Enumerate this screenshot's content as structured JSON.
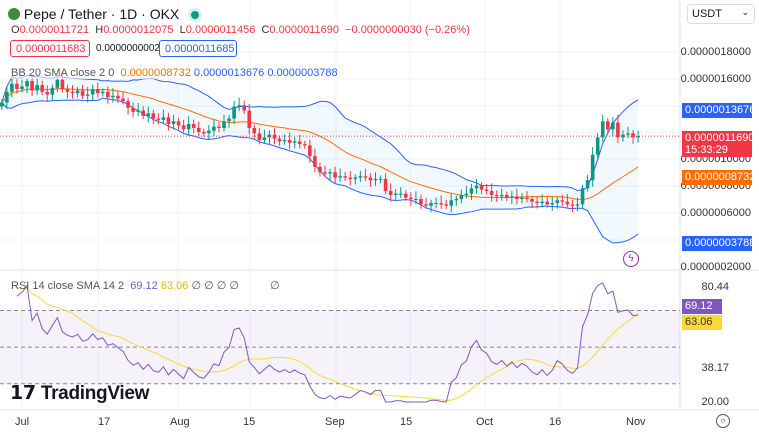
{
  "header": {
    "symbol": "Pepe / Tether · 1D · OKX",
    "status_color": "#089981",
    "ohlc": {
      "o_label": "O",
      "o": "0.0000011721",
      "h_label": "H",
      "h": "0.0000012075",
      "l_label": "L",
      "l": "0.0000011456",
      "c_label": "C",
      "c": "0.0000011690",
      "change": "−0.0000000030 (−0.26%)"
    },
    "sell": "0.0000011683",
    "spread": "0.0000000002",
    "buy": "0.0000011685"
  },
  "currency": "USDT",
  "bb": {
    "label": "BB 20 SMA close 2 0",
    "basis": "0.0000008732",
    "upper": "0.0000013676",
    "lower": "0.0000003788"
  },
  "price_axis": [
    "0.0000018000",
    "0.0000016000",
    "0.0000010000",
    "0.0000008000",
    "0.0000006000",
    "0.0000002000"
  ],
  "price_tags": {
    "upper": "0.0000013676",
    "last": "0.0000011690",
    "countdown": "15:33:29",
    "basis": "0.0000008732",
    "lower": "0.0000003788"
  },
  "rsi": {
    "label": "RSI 14 close SMA 14 2",
    "rsi": "69.12",
    "sma": "63.06",
    "extras": "∅ ∅ ∅ ∅",
    "extra2": "∅",
    "axis": [
      "80.44",
      "38.17",
      "20.00"
    ]
  },
  "time_axis": [
    "Jul",
    "17",
    "Aug",
    "15",
    "Sep",
    "15",
    "Oct",
    "16",
    "Nov"
  ],
  "logo": "TradingView",
  "colors": {
    "up": "#089981",
    "down": "#f23645",
    "bb_band": "#2962ff",
    "basis": "#ff6d00",
    "rsi": "#7e57c2",
    "rsi_sma": "#fdd835"
  },
  "closes_e7": [
    14.2,
    15.0,
    15.6,
    15.2,
    15.4,
    15.8,
    15.1,
    15.5,
    15.0,
    14.8,
    15.3,
    15.9,
    15.2,
    15.0,
    14.9,
    15.1,
    14.7,
    14.8,
    15.2,
    14.9,
    15.0,
    14.6,
    14.7,
    14.5,
    14.3,
    13.8,
    13.5,
    13.6,
    13.2,
    13.4,
    13.0,
    12.9,
    13.1,
    12.6,
    12.8,
    12.5,
    12.2,
    12.6,
    12.3,
    12.0,
    11.9,
    12.1,
    12.4,
    12.3,
    12.8,
    13.0,
    13.9,
    14.0,
    13.6,
    12.3,
    11.9,
    11.4,
    11.6,
    11.8,
    11.5,
    11.3,
    11.4,
    11.2,
    11.3,
    11.1,
    11.0,
    10.2,
    9.4,
    9.0,
    8.9,
    9.0,
    8.6,
    8.7,
    8.6,
    8.5,
    8.6,
    8.7,
    8.6,
    8.4,
    8.5,
    8.5,
    7.6,
    7.3,
    7.4,
    7.4,
    7.1,
    7.0,
    7.0,
    6.6,
    6.5,
    6.7,
    6.7,
    6.6,
    6.5,
    6.9,
    7.0,
    7.3,
    7.4,
    7.8,
    8.0,
    7.7,
    7.6,
    7.3,
    7.2,
    7.3,
    7.1,
    7.2,
    7.0,
    7.1,
    7.0,
    6.8,
    6.7,
    6.8,
    6.6,
    6.7,
    6.9,
    6.8,
    6.6,
    6.5,
    6.6,
    7.8,
    8.4,
    10.3,
    11.6,
    12.8,
    12.2,
    12.7,
    11.6,
    11.8,
    11.9,
    11.6,
    11.69
  ]
}
